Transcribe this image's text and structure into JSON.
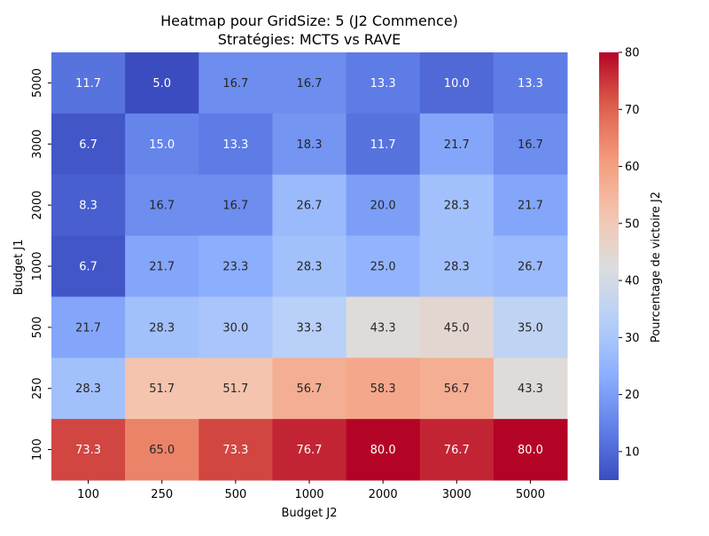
{
  "chart_data": {
    "type": "heatmap",
    "title": "Heatmap pour GridSize: 5 (J2 Commence)",
    "subtitle": "Stratégies: MCTS vs RAVE",
    "xlabel": "Budget J2",
    "ylabel": "Budget J1",
    "x_categories": [
      "100",
      "250",
      "500",
      "1000",
      "2000",
      "3000",
      "5000"
    ],
    "y_categories": [
      "5000",
      "3000",
      "2000",
      "1000",
      "500",
      "250",
      "100"
    ],
    "values": [
      [
        11.7,
        5.0,
        16.7,
        16.7,
        13.3,
        10.0,
        13.3
      ],
      [
        6.7,
        15.0,
        13.3,
        18.3,
        11.7,
        21.7,
        16.7
      ],
      [
        8.3,
        16.7,
        16.7,
        26.7,
        20.0,
        28.3,
        21.7
      ],
      [
        6.7,
        21.7,
        23.3,
        28.3,
        25.0,
        28.3,
        26.7
      ],
      [
        21.7,
        28.3,
        30.0,
        33.3,
        43.3,
        45.0,
        35.0
      ],
      [
        28.3,
        51.7,
        51.7,
        56.7,
        58.3,
        56.7,
        43.3
      ],
      [
        73.3,
        65.0,
        73.3,
        76.7,
        80.0,
        76.7,
        80.0
      ]
    ],
    "value_range": [
      5.0,
      80.0
    ],
    "colormap": "coolwarm",
    "colorbar": {
      "label": "Pourcentage de victoire J2",
      "ticks": [
        10,
        20,
        30,
        40,
        50,
        60,
        70,
        80
      ]
    }
  }
}
